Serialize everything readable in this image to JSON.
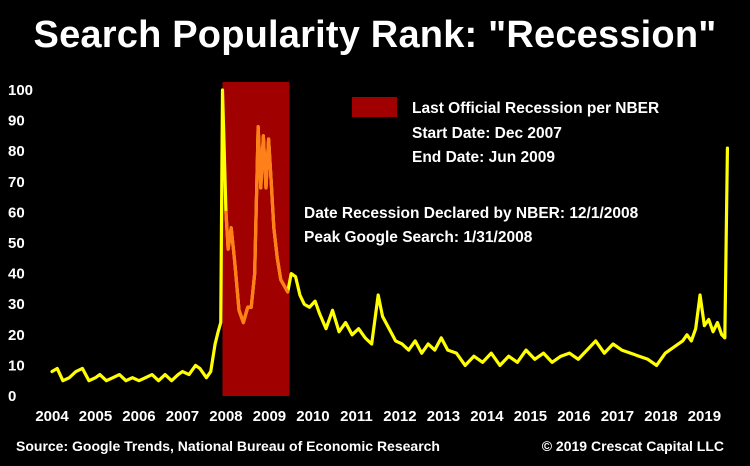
{
  "title": "Search Popularity Rank: \"Recession\"",
  "source_note": "Source: Google Trends, National Bureau of Economic Research",
  "copyright": "© 2019 Crescat Capital LLC",
  "colors": {
    "background": "#000000",
    "line_normal": "#ffff00",
    "line_recession": "#ff7f1a",
    "recession_band": "#a00000",
    "text": "#ffffff"
  },
  "chart_data": {
    "type": "line",
    "title": "Search Popularity Rank: \"Recession\"",
    "xlabel": "",
    "ylabel": "",
    "xlim": [
      2004.0,
      2019.75
    ],
    "ylim": [
      0,
      100
    ],
    "x_ticks": [
      2004,
      2005,
      2006,
      2007,
      2008,
      2009,
      2010,
      2011,
      2012,
      2013,
      2014,
      2015,
      2016,
      2017,
      2018,
      2019
    ],
    "y_ticks": [
      0,
      10,
      20,
      30,
      40,
      50,
      60,
      70,
      80,
      90,
      100
    ],
    "grid": false,
    "legend": {
      "position": "top-right",
      "entries": [
        "Last Official Recession per NBER"
      ]
    },
    "legend_lines": [
      "Start Date: Dec 2007",
      "End Date: Jun 2009"
    ],
    "annotations": [
      "Date Recession Declared by NBER: 12/1/2008",
      "Peak Google Search: 1/31/2008"
    ],
    "recession_band": {
      "start": "2007-12",
      "end": "2009-06",
      "x_start": 2007.92,
      "x_end": 2009.46
    },
    "series": [
      {
        "name": "Search Popularity Rank",
        "x": [
          2004.0,
          2004.12,
          2004.25,
          2004.4,
          2004.55,
          2004.7,
          2004.85,
          2005.0,
          2005.1,
          2005.25,
          2005.4,
          2005.55,
          2005.7,
          2005.85,
          2006.0,
          2006.15,
          2006.3,
          2006.45,
          2006.6,
          2006.75,
          2006.9,
          2007.0,
          2007.15,
          2007.3,
          2007.4,
          2007.55,
          2007.65,
          2007.75,
          2007.82,
          2007.88,
          2007.92,
          2008.0,
          2008.05,
          2008.12,
          2008.2,
          2008.3,
          2008.4,
          2008.5,
          2008.58,
          2008.66,
          2008.74,
          2008.8,
          2008.86,
          2008.92,
          2008.98,
          2009.04,
          2009.1,
          2009.18,
          2009.26,
          2009.34,
          2009.42,
          2009.5,
          2009.6,
          2009.7,
          2009.8,
          2009.92,
          2010.05,
          2010.15,
          2010.3,
          2010.45,
          2010.6,
          2010.75,
          2010.9,
          2011.05,
          2011.2,
          2011.35,
          2011.5,
          2011.6,
          2011.75,
          2011.9,
          2012.05,
          2012.2,
          2012.35,
          2012.5,
          2012.65,
          2012.8,
          2012.95,
          2013.1,
          2013.3,
          2013.5,
          2013.7,
          2013.9,
          2014.1,
          2014.3,
          2014.5,
          2014.7,
          2014.9,
          2015.1,
          2015.3,
          2015.5,
          2015.7,
          2015.9,
          2016.1,
          2016.3,
          2016.5,
          2016.7,
          2016.9,
          2017.1,
          2017.3,
          2017.5,
          2017.7,
          2017.9,
          2018.1,
          2018.3,
          2018.5,
          2018.6,
          2018.7,
          2018.8,
          2018.9,
          2019.0,
          2019.1,
          2019.2,
          2019.3,
          2019.4,
          2019.47,
          2019.53
        ],
        "y": [
          8,
          9,
          5,
          6,
          8,
          9,
          5,
          6,
          7,
          5,
          6,
          7,
          5,
          6,
          5,
          6,
          7,
          5,
          7,
          5,
          7,
          8,
          7,
          10,
          9,
          6,
          8,
          17,
          21,
          24,
          100,
          60,
          48,
          55,
          44,
          28,
          24,
          29,
          29,
          40,
          88,
          68,
          85,
          68,
          84,
          70,
          55,
          45,
          38,
          36,
          34,
          40,
          39,
          33,
          30,
          29,
          31,
          27,
          22,
          28,
          21,
          24,
          20,
          22,
          19,
          17,
          33,
          26,
          22,
          18,
          17,
          15,
          18,
          14,
          17,
          15,
          19,
          15,
          14,
          10,
          13,
          11,
          14,
          10,
          13,
          11,
          15,
          12,
          14,
          11,
          13,
          14,
          12,
          15,
          18,
          14,
          17,
          15,
          14,
          13,
          12,
          10,
          14,
          16,
          18,
          20,
          18,
          22,
          33,
          23,
          25,
          21,
          24,
          20,
          19,
          81
        ]
      }
    ]
  }
}
